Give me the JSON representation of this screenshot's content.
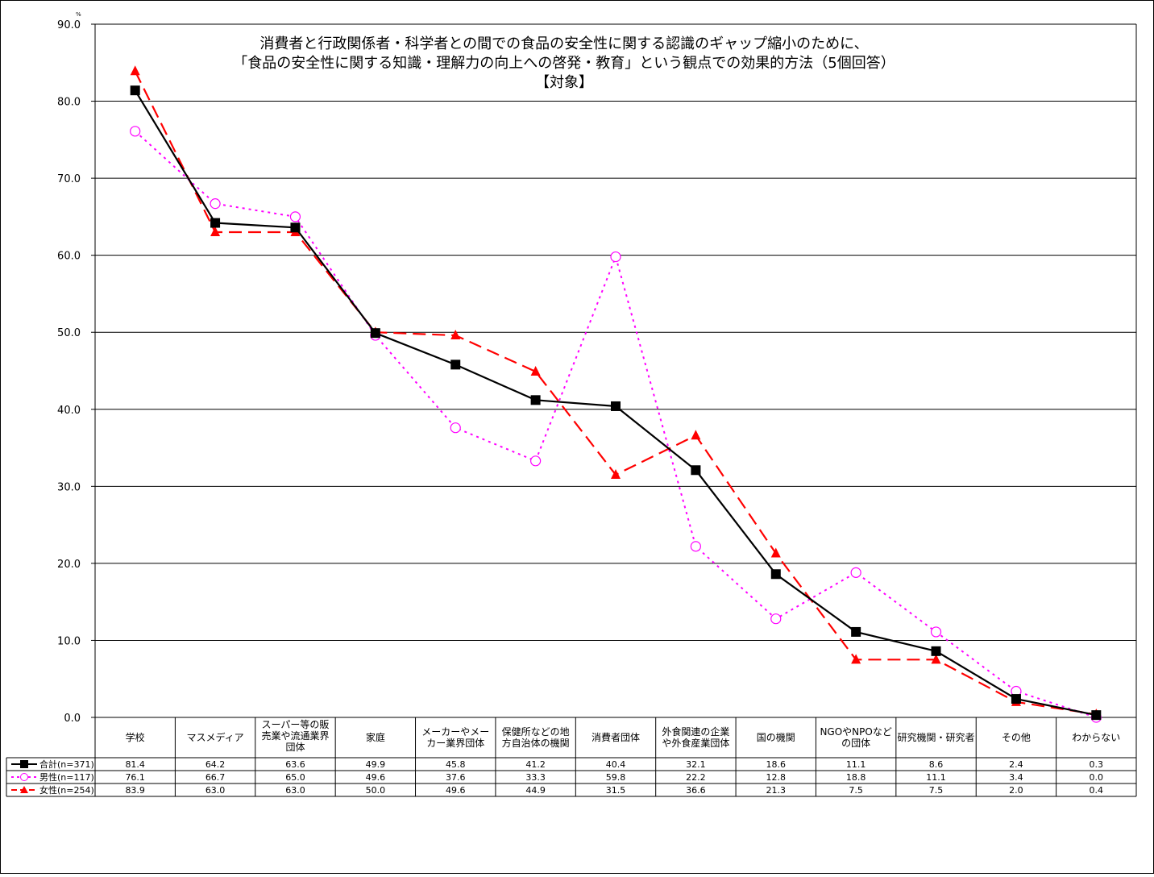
{
  "chart_data": {
    "type": "line",
    "title_lines": [
      "消費者と行政関係者・科学者との間での食品の安全性に関する認識のギャップ縮小のために、",
      "「食品の安全性に関する知識・理解力の向上への啓発・教育」という観点での効果的方法（5個回答）",
      "【対象】"
    ],
    "y_unit": "%",
    "ylim": [
      0,
      90
    ],
    "y_ticks": [
      "0.0",
      "10.0",
      "20.0",
      "30.0",
      "40.0",
      "50.0",
      "60.0",
      "70.0",
      "80.0",
      "90.0"
    ],
    "grid": true,
    "categories": [
      [
        "学校"
      ],
      [
        "マスメディア"
      ],
      [
        "スーパー等の販",
        "売業や流通業界",
        "団体"
      ],
      [
        "家庭"
      ],
      [
        "メーカーやメー",
        "カー業界団体"
      ],
      [
        "保健所などの地",
        "方自治体の機関"
      ],
      [
        "消費者団体"
      ],
      [
        "外食関連の企業",
        "や外食産業団体"
      ],
      [
        "国の機関"
      ],
      [
        "NGOやNPOなど",
        "の団体"
      ],
      [
        "研究機関・研究者"
      ],
      [
        "その他"
      ],
      [
        "わからない"
      ]
    ],
    "series": [
      {
        "name": "合計(n=371)",
        "color": "#000000",
        "marker": "square",
        "dash": "solid",
        "values": [
          81.4,
          64.2,
          63.6,
          49.9,
          45.8,
          41.2,
          40.4,
          32.1,
          18.6,
          11.1,
          8.6,
          2.4,
          0.3
        ],
        "labels": [
          "81.4",
          "64.2",
          "63.6",
          "49.9",
          "45.8",
          "41.2",
          "40.4",
          "32.1",
          "18.6",
          "11.1",
          "8.6",
          "2.4",
          "0.3"
        ]
      },
      {
        "name": "男性(n=117)",
        "color": "#ff00ff",
        "marker": "circle",
        "dash": "dotted",
        "values": [
          76.1,
          66.7,
          65.0,
          49.6,
          37.6,
          33.3,
          59.8,
          22.2,
          12.8,
          18.8,
          11.1,
          3.4,
          0.0
        ],
        "labels": [
          "76.1",
          "66.7",
          "65.0",
          "49.6",
          "37.6",
          "33.3",
          "59.8",
          "22.2",
          "12.8",
          "18.8",
          "11.1",
          "3.4",
          "0.0"
        ]
      },
      {
        "name": "女性(n=254)",
        "color": "#ff0000",
        "marker": "triangle",
        "dash": "dashed",
        "values": [
          83.9,
          63.0,
          63.0,
          50.0,
          49.6,
          44.9,
          31.5,
          36.6,
          21.3,
          7.5,
          7.5,
          2.0,
          0.4
        ],
        "labels": [
          "83.9",
          "63.0",
          "63.0",
          "50.0",
          "49.6",
          "44.9",
          "31.5",
          "36.6",
          "21.3",
          "7.5",
          "7.5",
          "2.0",
          "0.4"
        ]
      }
    ]
  }
}
